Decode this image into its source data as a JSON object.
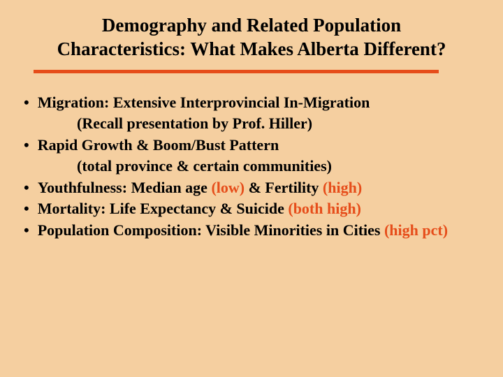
{
  "slide": {
    "background_color": "#f5cfa0",
    "title_line1": "Demography and Related Population",
    "title_line2": "Characteristics:  What Makes Alberta Different?",
    "title_color": "#000000",
    "title_fontsize": 27,
    "divider_color": "#e64d1a",
    "text_color": "#000000",
    "highlight_color": "#e64d1a",
    "bullet_fontsize": 22,
    "bullets": [
      {
        "main": "Migration:  Extensive Interprovincial In-Migration",
        "sub": "(Recall presentation by Prof. Hiller)"
      },
      {
        "main": "Rapid Growth  & Boom/Bust Pattern",
        "sub": "(total province & certain communities)"
      },
      {
        "main_pre": "Youthfulness:  Median age ",
        "hl1": "(low)",
        "mid": " & Fertility ",
        "hl2": "(high)"
      },
      {
        "main_pre": "Mortality:  Life Expectancy & Suicide ",
        "hl1": "(both high)"
      },
      {
        "main_pre": "Population Composition:  Visible Minorities in Cities ",
        "hl1": "(high pct)"
      }
    ]
  }
}
